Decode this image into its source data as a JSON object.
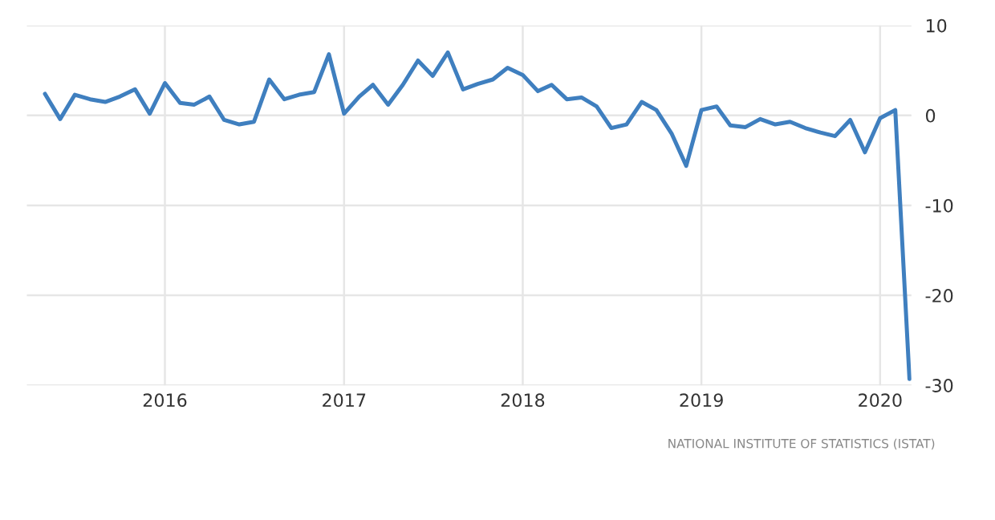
{
  "chart_data": {
    "type": "line",
    "x": [
      "2015-05",
      "2015-06",
      "2015-07",
      "2015-08",
      "2015-09",
      "2015-10",
      "2015-11",
      "2015-12",
      "2016-01",
      "2016-02",
      "2016-03",
      "2016-04",
      "2016-05",
      "2016-06",
      "2016-07",
      "2016-08",
      "2016-09",
      "2016-10",
      "2016-11",
      "2016-12",
      "2017-01",
      "2017-02",
      "2017-03",
      "2017-04",
      "2017-05",
      "2017-06",
      "2017-07",
      "2017-08",
      "2017-09",
      "2017-10",
      "2017-11",
      "2017-12",
      "2018-01",
      "2018-02",
      "2018-03",
      "2018-04",
      "2018-05",
      "2018-06",
      "2018-07",
      "2018-08",
      "2018-09",
      "2018-10",
      "2018-11",
      "2018-12",
      "2019-01",
      "2019-02",
      "2019-03",
      "2019-04",
      "2019-05",
      "2019-06",
      "2019-07",
      "2019-08",
      "2019-09",
      "2019-10",
      "2019-11",
      "2019-12",
      "2020-01",
      "2020-02",
      "2020-03"
    ],
    "series": [
      {
        "color": "#3f7fbf",
        "values": [
          2.4,
          -0.4,
          2.3,
          1.8,
          1.5,
          2.1,
          2.9,
          0.2,
          3.6,
          1.4,
          1.2,
          2.1,
          -0.5,
          -1.0,
          -0.7,
          4.0,
          1.8,
          2.3,
          2.6,
          6.8,
          0.2,
          2.1,
          3.4,
          1.2,
          3.4,
          6.1,
          4.4,
          7.0,
          2.9,
          3.5,
          4.0,
          5.3,
          4.5,
          2.7,
          3.4,
          1.8,
          2.0,
          1.0,
          -1.4,
          -1.0,
          1.5,
          0.6,
          -2.0,
          -5.6,
          0.6,
          1.0,
          -1.1,
          -1.3,
          -0.4,
          -1.0,
          -0.7,
          -1.4,
          -1.9,
          -2.3,
          -0.5,
          -4.1,
          -0.3,
          0.6,
          -29.3
        ]
      }
    ],
    "xlim": [
      "2015-03-25",
      "2020-03-05"
    ],
    "xticks": [
      {
        "value": "2016-01-01",
        "label": "2016"
      },
      {
        "value": "2017-01-01",
        "label": "2017"
      },
      {
        "value": "2018-01-01",
        "label": "2018"
      },
      {
        "value": "2019-01-01",
        "label": "2019"
      },
      {
        "value": "2020-01-01",
        "label": "2020"
      }
    ],
    "ylim": [
      -30,
      10
    ],
    "yticks": [
      10,
      0,
      -10,
      -20,
      -30
    ],
    "grid": true,
    "marker": "none",
    "line_style": "solid",
    "annotations": [
      "NATIONAL INSTITUTE OF STATISTICS (ISTAT)"
    ]
  }
}
